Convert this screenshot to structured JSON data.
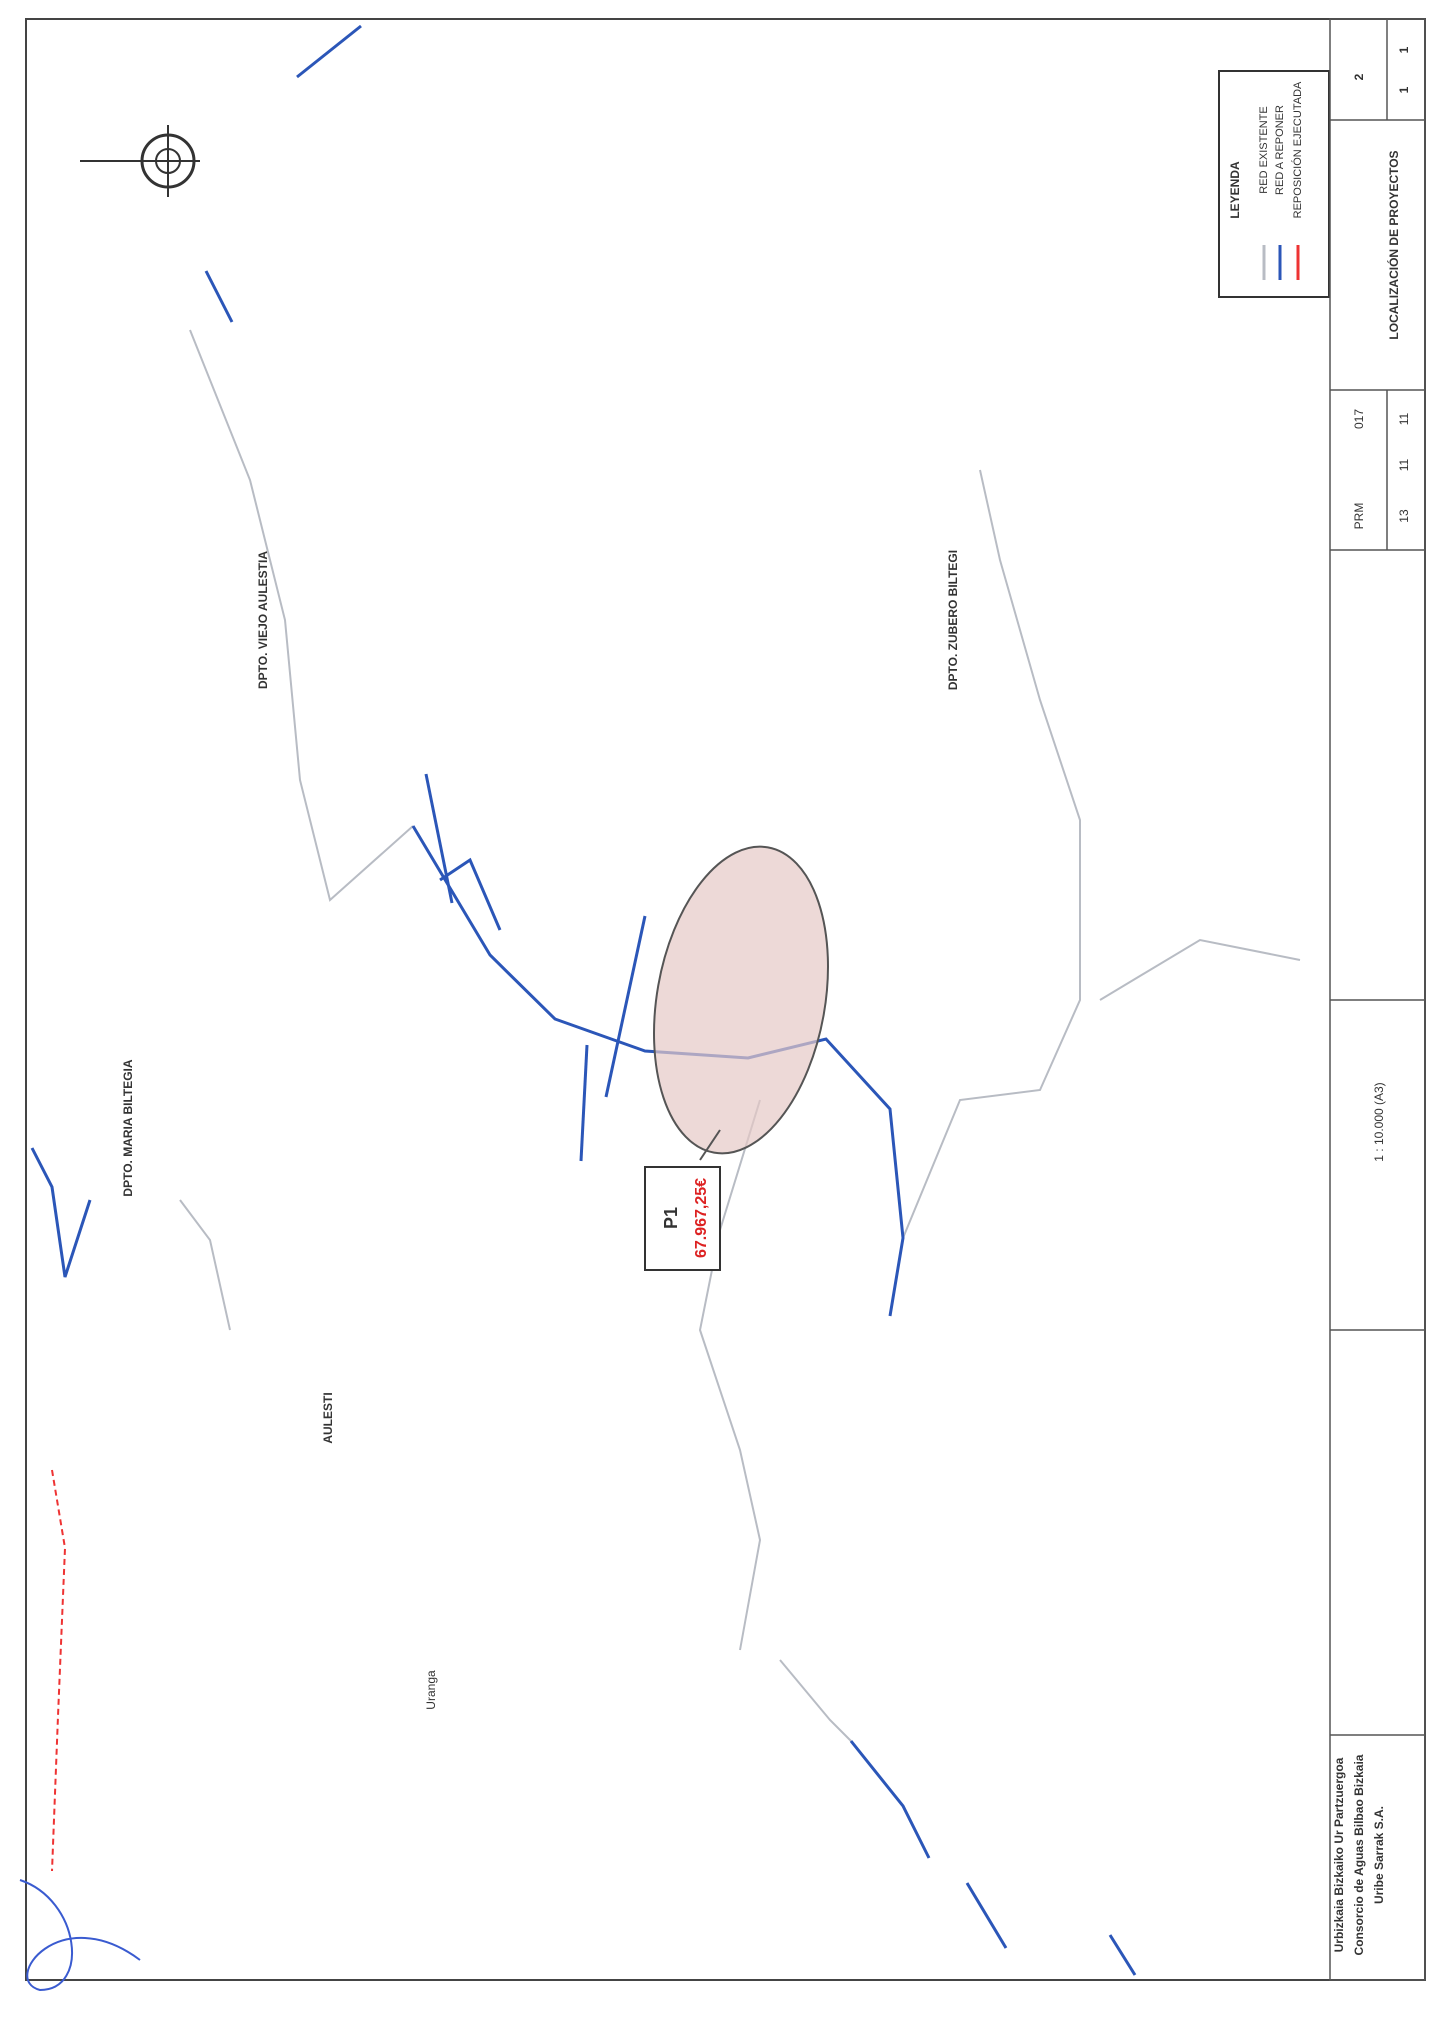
{
  "legend": {
    "title": "LEYENDA",
    "items": [
      "RED EXISTENTE",
      "RED A REPONER",
      "REPOSICIÓN EJECUTADA"
    ]
  },
  "project": {
    "label": "P1",
    "amount": "67.967,25€"
  },
  "places": [
    "DPTO. VIEJO AULESTIA",
    "DPTO. ZUBERO BILTEGI",
    "DPTO. MARIA BILTEGIA",
    "AULESTI",
    "Uranga"
  ],
  "title_block": {
    "org": [
      "Urbizkaia Bizkaiko Ur Partzuergoa",
      "Consorcio de Aguas Bilbao Bizkaia",
      "Uribe Sarrak S.A."
    ],
    "drawing_title": "LOCALIZACIÓN DE PROYECTOS",
    "scale": "1 : 10.000 (A3)",
    "codes": [
      "PRM",
      "017",
      "13",
      "11",
      "11"
    ],
    "sheet": "2",
    "page": "1",
    "of": "1"
  }
}
